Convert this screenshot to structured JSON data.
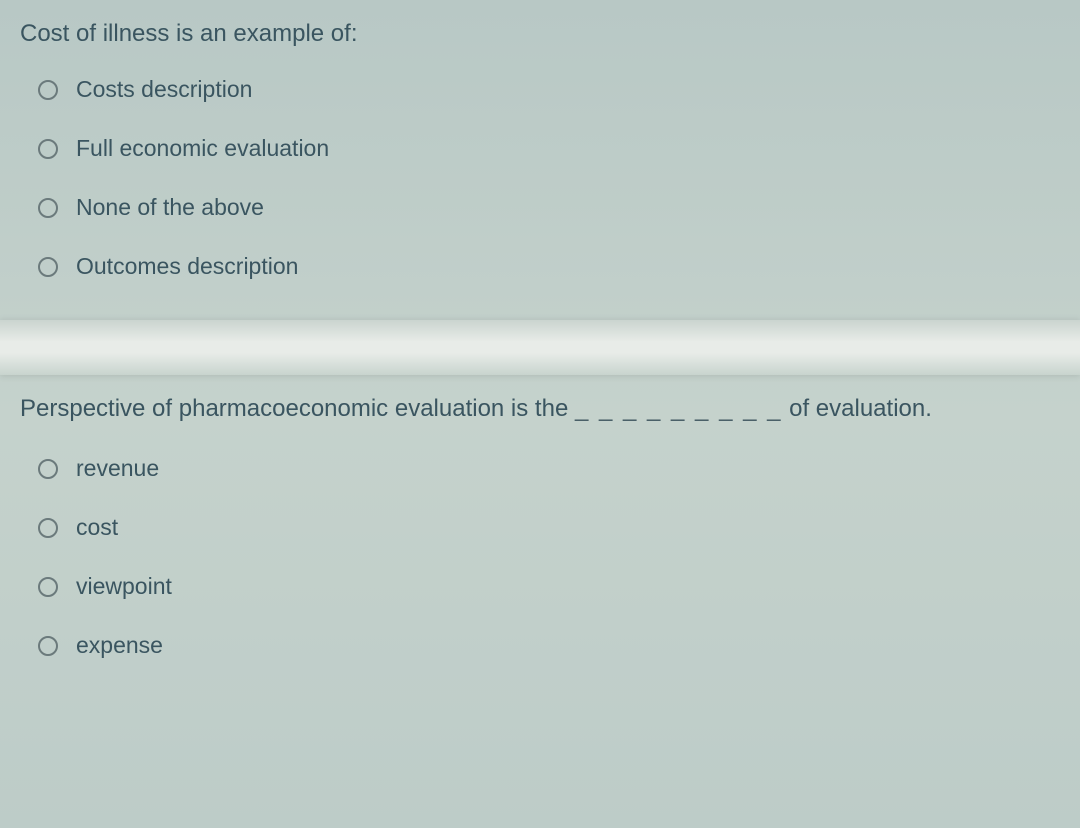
{
  "question1": {
    "prompt": "Cost of illness is an example of:",
    "options": [
      "Costs description",
      "Full economic evaluation",
      "None of the above",
      "Outcomes description"
    ]
  },
  "question2": {
    "prompt_pre": "Perspective of pharmacoeconomic evaluation is the ",
    "blank": "_ _ _ _ _ _ _ _ _",
    "prompt_post": " of evaluation.",
    "options": [
      "revenue",
      "cost",
      "viewpoint",
      "expense"
    ]
  },
  "colors": {
    "text": "#3a5560",
    "radio_border": "#6b7a7c",
    "bg_top": "#b8c8c5",
    "bg_mid": "#c5d2cc",
    "divider_light": "#e8ece8"
  },
  "typography": {
    "question_fontsize": 24,
    "option_fontsize": 23,
    "font_family": "Arial"
  }
}
